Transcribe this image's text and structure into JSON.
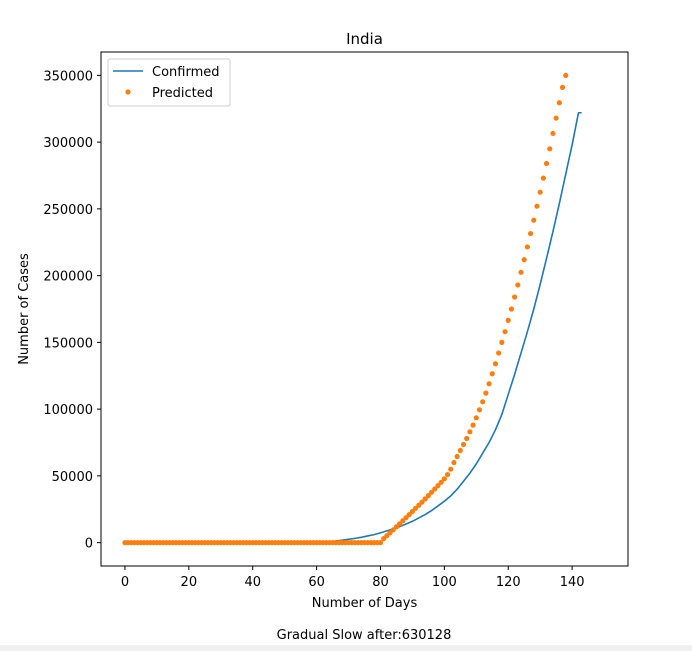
{
  "chart_data": {
    "type": "line",
    "title": "India",
    "xlabel": "Number of Days",
    "ylabel": "Number of Cases",
    "xlim": [
      -7.5,
      157.5
    ],
    "ylim": [
      -17500,
      367500
    ],
    "xticks": [
      0,
      20,
      40,
      60,
      80,
      100,
      120,
      140
    ],
    "yticks": [
      0,
      50000,
      100000,
      150000,
      200000,
      250000,
      300000,
      350000
    ],
    "legend_position": "upper-left",
    "grid": false,
    "series": [
      {
        "name": "Confirmed",
        "style": "line",
        "color": "#1f77b4",
        "x": [
          0,
          10,
          20,
          30,
          40,
          50,
          55,
          60,
          62,
          64,
          66,
          68,
          70,
          72,
          74,
          76,
          78,
          80,
          82,
          84,
          86,
          88,
          90,
          92,
          94,
          96,
          98,
          100,
          102,
          104,
          106,
          108,
          110,
          112,
          114,
          116,
          118,
          120,
          122,
          124,
          126,
          128,
          130,
          132,
          134,
          136,
          138,
          140,
          142,
          143
        ],
        "y": [
          0,
          0,
          0,
          0,
          0,
          0,
          50,
          300,
          500,
          800,
          1200,
          1800,
          2500,
          3200,
          4000,
          5000,
          6000,
          7300,
          8800,
          10300,
          12000,
          14000,
          16000,
          18500,
          21000,
          24000,
          27500,
          31000,
          35000,
          40000,
          46000,
          52000,
          59000,
          67000,
          75000,
          84500,
          96000,
          111000,
          126000,
          142000,
          158000,
          175000,
          193500,
          213000,
          233000,
          254000,
          276000,
          298000,
          322000,
          322000
        ]
      },
      {
        "name": "Predicted",
        "style": "dots",
        "color": "#ff7f0e",
        "x_start": 0,
        "x_step": 1,
        "y": [
          0,
          0,
          0,
          0,
          0,
          0,
          0,
          0,
          0,
          0,
          0,
          0,
          0,
          0,
          0,
          0,
          0,
          0,
          0,
          0,
          0,
          0,
          0,
          0,
          0,
          0,
          0,
          0,
          0,
          0,
          0,
          0,
          0,
          0,
          0,
          0,
          0,
          0,
          0,
          0,
          0,
          0,
          0,
          0,
          0,
          0,
          0,
          0,
          0,
          0,
          0,
          0,
          0,
          0,
          0,
          0,
          0,
          0,
          0,
          0,
          0,
          0,
          0,
          0,
          0,
          0,
          0,
          0,
          0,
          0,
          0,
          0,
          0,
          0,
          0,
          0,
          0,
          0,
          0,
          0,
          0,
          3000,
          5200,
          7400,
          9600,
          11900,
          14100,
          16400,
          18700,
          21000,
          23300,
          25700,
          28000,
          30400,
          32800,
          35200,
          37700,
          40200,
          42700,
          45200,
          47800,
          51000,
          55000,
          60000,
          64500,
          69000,
          73500,
          78000,
          83000,
          88000,
          93500,
          99500,
          105500,
          112000,
          119000,
          126500,
          134000,
          142000,
          150000,
          158000,
          166500,
          175000,
          184000,
          193000,
          202500,
          212000,
          221500,
          231500,
          241500,
          252000,
          262500,
          273000,
          284000,
          295000,
          306500,
          318000,
          329500,
          341000,
          350000
        ]
      }
    ],
    "footer_text": "Gradual Slow after:630128"
  }
}
